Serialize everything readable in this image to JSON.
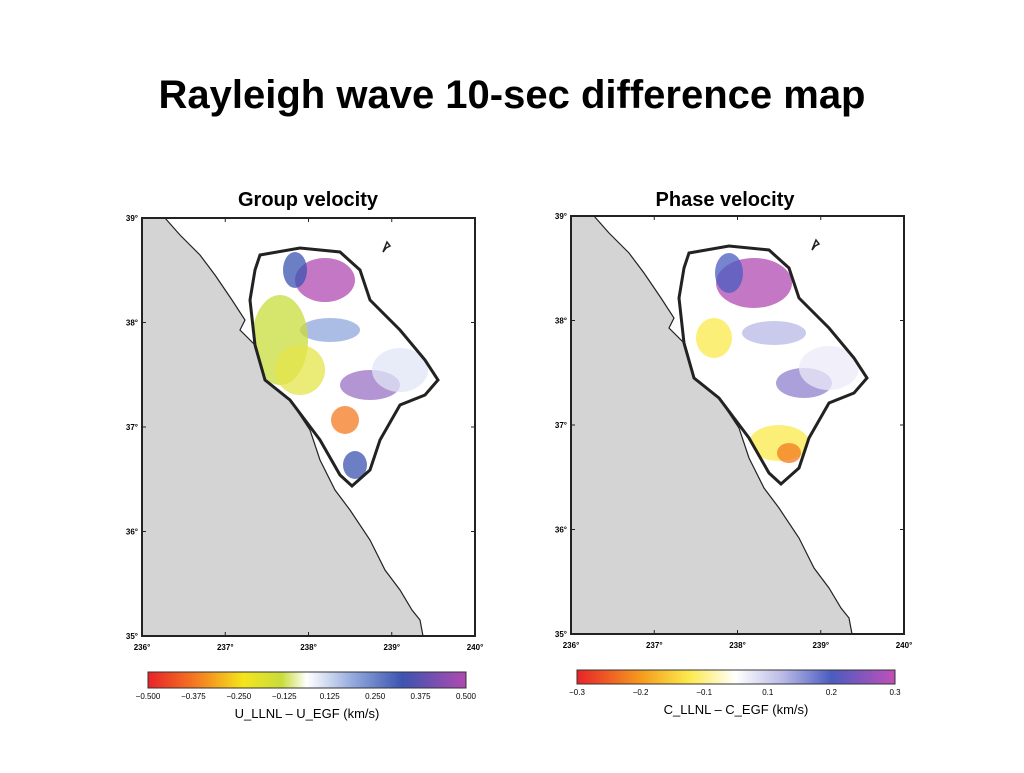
{
  "title": "Rayleigh wave 10-sec difference map",
  "maps": [
    {
      "title": "Group velocity",
      "lat_ticks": [
        "39°",
        "38°",
        "37°",
        "36°",
        "35°"
      ],
      "lon_ticks": [
        "236°",
        "237°",
        "238°",
        "239°",
        "240°"
      ],
      "colorbar": {
        "ticks": [
          "−0.500",
          "−0.375",
          "−0.250",
          "−0.125",
          "0.125",
          "0.250",
          "0.375",
          "0.500"
        ],
        "label": "U_LLNL – U_EGF (km/s)"
      }
    },
    {
      "title": "Phase velocity",
      "lat_ticks": [
        "39°",
        "38°",
        "37°",
        "36°",
        "35°"
      ],
      "lon_ticks": [
        "236°",
        "237°",
        "238°",
        "239°",
        "240°"
      ],
      "colorbar": {
        "ticks": [
          "−0.3",
          "−0.2",
          "−0.1",
          "0.1",
          "0.2",
          "0.3"
        ],
        "label": "C_LLNL – C_EGF (km/s)"
      }
    }
  ]
}
